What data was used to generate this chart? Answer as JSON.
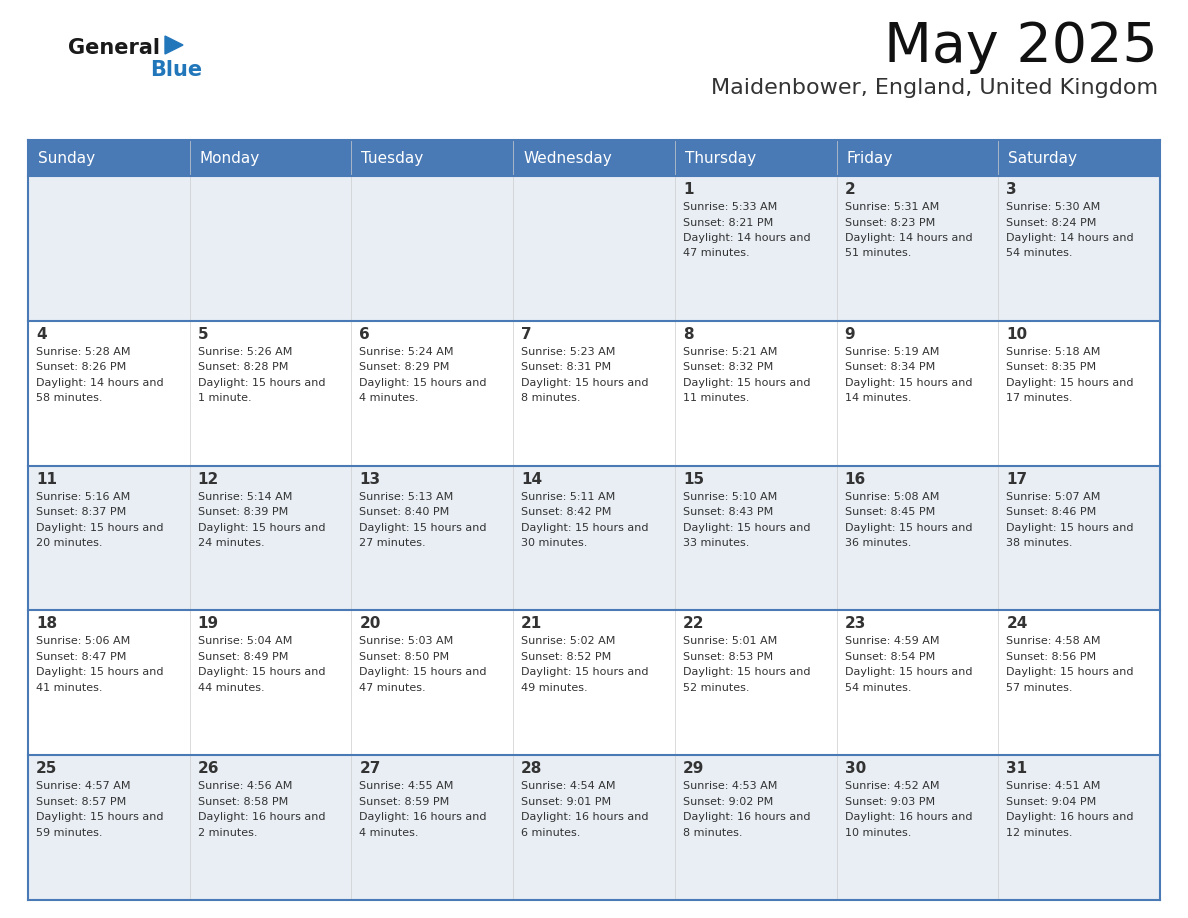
{
  "title": "May 2025",
  "subtitle": "Maidenbower, England, United Kingdom",
  "days_of_week": [
    "Sunday",
    "Monday",
    "Tuesday",
    "Wednesday",
    "Thursday",
    "Friday",
    "Saturday"
  ],
  "header_bg": "#4a7ab5",
  "header_text": "#ffffff",
  "row_bg_odd": "#e8eef4",
  "row_bg_even": "#ffffff",
  "border_color": "#4a7ab5",
  "text_color": "#333333",
  "bg_color": "#ffffff",
  "logo_color": "#2277bb",
  "logo_dark": "#1a1a1a",
  "calendar_data": [
    [
      {
        "day": "",
        "sunrise": "",
        "sunset": "",
        "daylight": ""
      },
      {
        "day": "",
        "sunrise": "",
        "sunset": "",
        "daylight": ""
      },
      {
        "day": "",
        "sunrise": "",
        "sunset": "",
        "daylight": ""
      },
      {
        "day": "",
        "sunrise": "",
        "sunset": "",
        "daylight": ""
      },
      {
        "day": "1",
        "sunrise": "5:33 AM",
        "sunset": "8:21 PM",
        "daylight": "14 hours and 47 minutes."
      },
      {
        "day": "2",
        "sunrise": "5:31 AM",
        "sunset": "8:23 PM",
        "daylight": "14 hours and 51 minutes."
      },
      {
        "day": "3",
        "sunrise": "5:30 AM",
        "sunset": "8:24 PM",
        "daylight": "14 hours and 54 minutes."
      }
    ],
    [
      {
        "day": "4",
        "sunrise": "5:28 AM",
        "sunset": "8:26 PM",
        "daylight": "14 hours and 58 minutes."
      },
      {
        "day": "5",
        "sunrise": "5:26 AM",
        "sunset": "8:28 PM",
        "daylight": "15 hours and 1 minute."
      },
      {
        "day": "6",
        "sunrise": "5:24 AM",
        "sunset": "8:29 PM",
        "daylight": "15 hours and 4 minutes."
      },
      {
        "day": "7",
        "sunrise": "5:23 AM",
        "sunset": "8:31 PM",
        "daylight": "15 hours and 8 minutes."
      },
      {
        "day": "8",
        "sunrise": "5:21 AM",
        "sunset": "8:32 PM",
        "daylight": "15 hours and 11 minutes."
      },
      {
        "day": "9",
        "sunrise": "5:19 AM",
        "sunset": "8:34 PM",
        "daylight": "15 hours and 14 minutes."
      },
      {
        "day": "10",
        "sunrise": "5:18 AM",
        "sunset": "8:35 PM",
        "daylight": "15 hours and 17 minutes."
      }
    ],
    [
      {
        "day": "11",
        "sunrise": "5:16 AM",
        "sunset": "8:37 PM",
        "daylight": "15 hours and 20 minutes."
      },
      {
        "day": "12",
        "sunrise": "5:14 AM",
        "sunset": "8:39 PM",
        "daylight": "15 hours and 24 minutes."
      },
      {
        "day": "13",
        "sunrise": "5:13 AM",
        "sunset": "8:40 PM",
        "daylight": "15 hours and 27 minutes."
      },
      {
        "day": "14",
        "sunrise": "5:11 AM",
        "sunset": "8:42 PM",
        "daylight": "15 hours and 30 minutes."
      },
      {
        "day": "15",
        "sunrise": "5:10 AM",
        "sunset": "8:43 PM",
        "daylight": "15 hours and 33 minutes."
      },
      {
        "day": "16",
        "sunrise": "5:08 AM",
        "sunset": "8:45 PM",
        "daylight": "15 hours and 36 minutes."
      },
      {
        "day": "17",
        "sunrise": "5:07 AM",
        "sunset": "8:46 PM",
        "daylight": "15 hours and 38 minutes."
      }
    ],
    [
      {
        "day": "18",
        "sunrise": "5:06 AM",
        "sunset": "8:47 PM",
        "daylight": "15 hours and 41 minutes."
      },
      {
        "day": "19",
        "sunrise": "5:04 AM",
        "sunset": "8:49 PM",
        "daylight": "15 hours and 44 minutes."
      },
      {
        "day": "20",
        "sunrise": "5:03 AM",
        "sunset": "8:50 PM",
        "daylight": "15 hours and 47 minutes."
      },
      {
        "day": "21",
        "sunrise": "5:02 AM",
        "sunset": "8:52 PM",
        "daylight": "15 hours and 49 minutes."
      },
      {
        "day": "22",
        "sunrise": "5:01 AM",
        "sunset": "8:53 PM",
        "daylight": "15 hours and 52 minutes."
      },
      {
        "day": "23",
        "sunrise": "4:59 AM",
        "sunset": "8:54 PM",
        "daylight": "15 hours and 54 minutes."
      },
      {
        "day": "24",
        "sunrise": "4:58 AM",
        "sunset": "8:56 PM",
        "daylight": "15 hours and 57 minutes."
      }
    ],
    [
      {
        "day": "25",
        "sunrise": "4:57 AM",
        "sunset": "8:57 PM",
        "daylight": "15 hours and 59 minutes."
      },
      {
        "day": "26",
        "sunrise": "4:56 AM",
        "sunset": "8:58 PM",
        "daylight": "16 hours and 2 minutes."
      },
      {
        "day": "27",
        "sunrise": "4:55 AM",
        "sunset": "8:59 PM",
        "daylight": "16 hours and 4 minutes."
      },
      {
        "day": "28",
        "sunrise": "4:54 AM",
        "sunset": "9:01 PM",
        "daylight": "16 hours and 6 minutes."
      },
      {
        "day": "29",
        "sunrise": "4:53 AM",
        "sunset": "9:02 PM",
        "daylight": "16 hours and 8 minutes."
      },
      {
        "day": "30",
        "sunrise": "4:52 AM",
        "sunset": "9:03 PM",
        "daylight": "16 hours and 10 minutes."
      },
      {
        "day": "31",
        "sunrise": "4:51 AM",
        "sunset": "9:04 PM",
        "daylight": "16 hours and 12 minutes."
      }
    ]
  ]
}
